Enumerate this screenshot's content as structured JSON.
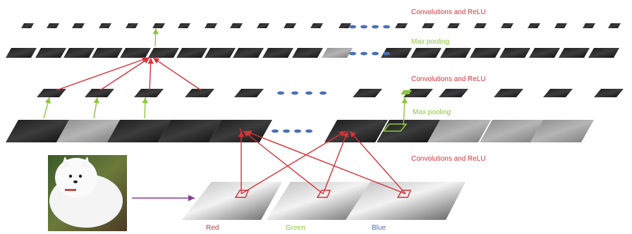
{
  "labels": {
    "conv_top": "Convolutions and ReLU",
    "pool_top": "Max pooling",
    "conv_mid": "Convolutions and ReLU",
    "pool_mid": "Max pooling",
    "conv_bottom": "Convolutions and ReLU"
  },
  "channels": [
    "Red",
    "Green",
    "Blue"
  ],
  "colors": {
    "conv_arrow": "#d8313a",
    "pool_arrow": "#8cc63e",
    "input_arrow": "#8a3b9e",
    "ellipsis_dots": "#4a6fb5",
    "red_label": "#d8313a",
    "green_label": "#8cc63e",
    "blue_label": "#4a6fb5"
  },
  "icons": {
    "input_photo": "white-puppy-photo",
    "feature_map": "feature-map-tile"
  }
}
